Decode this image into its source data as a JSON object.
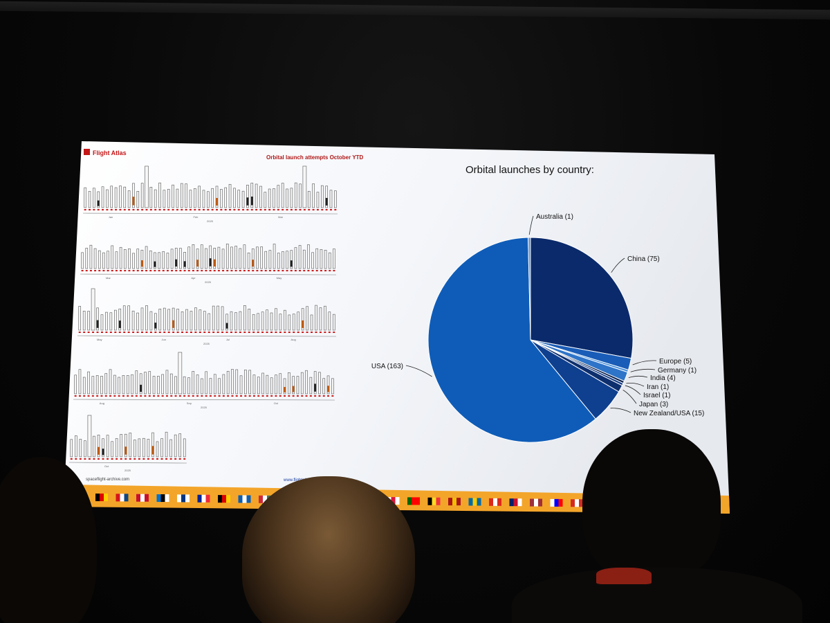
{
  "slide": {
    "brand": "Flight Atlas",
    "left_title": "Orbital launch attempts October YTD",
    "footer_left": "spaceflight-archive.com",
    "footer_right": "www.flightatlas.org",
    "strip_months": [
      [
        "Jan",
        "Feb",
        "Mar"
      ],
      [
        "Mar",
        "Apr",
        "May"
      ],
      [
        "May",
        "Jun",
        "Jul",
        "Aug"
      ],
      [
        "Aug",
        "Sep",
        "Oct"
      ],
      [
        "Oct"
      ]
    ],
    "strip_year": "2025",
    "flag_colors": [
      [
        "#000000",
        "#dd0000",
        "#ffce00"
      ],
      [
        "#d7141a",
        "#ffffff",
        "#11457e"
      ],
      [
        "#c8102e",
        "#ffffff",
        "#c8102e"
      ],
      [
        "#0072ce",
        "#000000",
        "#ffffff"
      ],
      [
        "#ffffff",
        "#003580",
        "#ffffff"
      ],
      [
        "#002395",
        "#ffffff",
        "#ed2939"
      ],
      [
        "#000000",
        "#dd0000",
        "#ffce00"
      ],
      [
        "#0d5eaf",
        "#ffffff",
        "#0d5eaf"
      ],
      [
        "#ce2939",
        "#ffffff",
        "#477050"
      ],
      [
        "#009246",
        "#ffffff",
        "#ce2b37"
      ],
      [
        "#c8102e",
        "#ffffff",
        "#c8102e"
      ],
      [
        "#ffffff",
        "#dc143c",
        "#ffffff"
      ],
      [
        "#006600",
        "#ff0000",
        "#ff0000"
      ],
      [
        "#000000",
        "#fdda24",
        "#ef3340"
      ],
      [
        "#aa151b",
        "#f1bf00",
        "#aa151b"
      ],
      [
        "#006aa7",
        "#fecc00",
        "#006aa7"
      ],
      [
        "#da291c",
        "#ffffff",
        "#da291c"
      ],
      [
        "#012169",
        "#c8102e",
        "#ffffff"
      ],
      [
        "#9e3039",
        "#ffffff",
        "#9e3039"
      ],
      [
        "#ffffff",
        "#0000ff",
        "#ff0000"
      ],
      [
        "#d52b1e",
        "#ffffff",
        "#d52b1e"
      ]
    ]
  },
  "chart_data": {
    "type": "pie",
    "title": "Orbital launches by country:",
    "slices": [
      {
        "label": "China (75)",
        "value": 75,
        "color": "#0a2a6b"
      },
      {
        "label": "Europe (5)",
        "value": 5,
        "color": "#1a5db8"
      },
      {
        "label": "Germany (1)",
        "value": 1,
        "color": "#4a8fd8"
      },
      {
        "label": "India (4)",
        "value": 4,
        "color": "#2e74c8"
      },
      {
        "label": "Iran (1)",
        "value": 1,
        "color": "#0b1f4a"
      },
      {
        "label": "Israel (1)",
        "value": 1,
        "color": "#123a85"
      },
      {
        "label": "Japan (3)",
        "value": 3,
        "color": "#0e2f6e"
      },
      {
        "label": "New Zealand/USA (15)",
        "value": 15,
        "color": "#0f3f8f"
      },
      {
        "label": "USA (163)",
        "value": 163,
        "color": "#0f5cb8"
      },
      {
        "label": "Australia (1)",
        "value": 1,
        "color": "#5a8fd0"
      }
    ]
  }
}
